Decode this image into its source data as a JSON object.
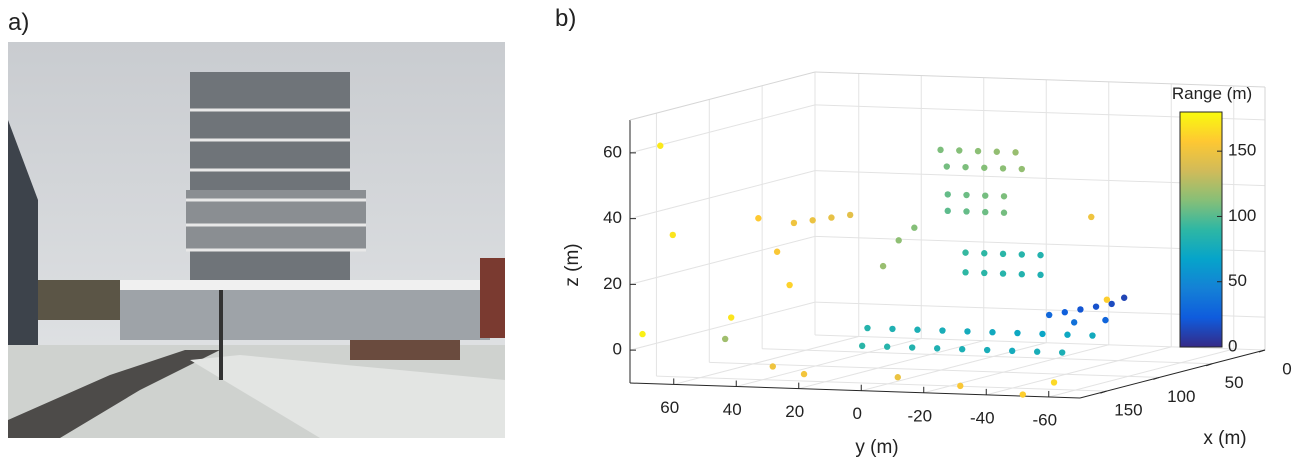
{
  "panel_labels": [
    "a)",
    "b)"
  ],
  "chart_data": {
    "type": "scatter3d",
    "xlabel": "x (m)",
    "ylabel": "y (m)",
    "zlabel": "z (m)",
    "colorbar_label": "Range (m)",
    "xlim": [
      0,
      175
    ],
    "ylim": [
      74,
      -70
    ],
    "zlim": [
      -10,
      70
    ],
    "clim": [
      0,
      180
    ],
    "xticks": [
      0,
      50,
      100,
      150
    ],
    "yticks": [
      60,
      40,
      20,
      0,
      -20,
      -40,
      -60
    ],
    "zticks": [
      0,
      20,
      40,
      60
    ],
    "cticks": [
      0,
      50,
      100,
      150
    ],
    "grid": true,
    "colormap": [
      "#352a87",
      "#0f5cdd",
      "#1481d6",
      "#06a4ca",
      "#2eb7a4",
      "#87bf77",
      "#d1bb59",
      "#fec832",
      "#f9fb0e"
    ],
    "x": [
      100,
      100,
      100,
      100,
      100,
      100,
      100,
      100,
      100,
      100,
      105,
      105,
      105,
      105,
      105,
      105,
      105,
      105,
      100,
      100,
      100,
      100,
      100,
      100,
      100,
      100,
      100,
      100,
      110,
      110,
      110,
      110,
      110,
      110,
      110,
      110,
      110,
      110,
      110,
      110,
      110,
      115,
      115,
      115,
      115,
      115,
      115,
      115,
      115,
      115,
      80,
      80,
      80,
      80,
      80,
      80,
      80,
      80,
      170,
      170,
      170,
      170,
      170,
      170,
      160,
      160,
      160,
      165,
      150,
      150,
      150,
      150,
      170,
      170,
      175,
      120,
      120,
      150
    ],
    "y": [
      0,
      -6,
      -12,
      -18,
      -24,
      -2,
      -8,
      -14,
      -20,
      -26,
      -4,
      -10,
      -16,
      -22,
      -4,
      -10,
      -16,
      -22,
      -8,
      -14,
      -20,
      -26,
      -32,
      -8,
      -14,
      -20,
      -26,
      -32,
      10,
      5,
      15,
      20,
      12,
      4,
      -4,
      -12,
      -20,
      -28,
      -36,
      -44,
      -52,
      20,
      12,
      4,
      -4,
      -12,
      -20,
      -28,
      -36,
      -44,
      -28,
      -33,
      -38,
      -43,
      -48,
      -52,
      -36,
      -46,
      30,
      20,
      -10,
      -30,
      -50,
      -60,
      38,
      32,
      28,
      45,
      30,
      24,
      18,
      12,
      66,
      62,
      70,
      -60,
      -55,
      52
    ],
    "z": [
      57,
      57,
      57,
      57,
      57,
      52,
      52,
      52,
      52,
      52,
      44,
      44,
      44,
      44,
      39,
      39,
      39,
      39,
      26,
      26,
      26,
      26,
      26,
      20,
      20,
      20,
      20,
      20,
      30,
      34,
      22,
      3,
      3,
      3,
      3,
      3,
      3,
      3,
      3,
      3,
      3,
      -2,
      -2,
      -2,
      -2,
      -2,
      -2,
      -2,
      -2,
      -2,
      6,
      7,
      8,
      9,
      10,
      12,
      4,
      5,
      -4,
      -6,
      -6,
      -8,
      -10,
      -6,
      40,
      30,
      20,
      10,
      38,
      39,
      40,
      41,
      62,
      35,
      5,
      15,
      40,
      2
    ],
    "values": [
      110,
      112,
      114,
      116,
      118,
      108,
      110,
      112,
      114,
      116,
      104,
      106,
      108,
      110,
      102,
      104,
      106,
      108,
      92,
      90,
      88,
      86,
      84,
      90,
      88,
      86,
      84,
      82,
      115,
      112,
      118,
      85,
      82,
      80,
      78,
      76,
      74,
      72,
      70,
      72,
      75,
      88,
      86,
      84,
      82,
      80,
      78,
      76,
      78,
      80,
      30,
      25,
      20,
      18,
      15,
      12,
      35,
      28,
      150,
      152,
      148,
      155,
      160,
      165,
      158,
      155,
      162,
      170,
      150,
      148,
      146,
      144,
      172,
      170,
      175,
      160,
      150,
      120
    ]
  }
}
